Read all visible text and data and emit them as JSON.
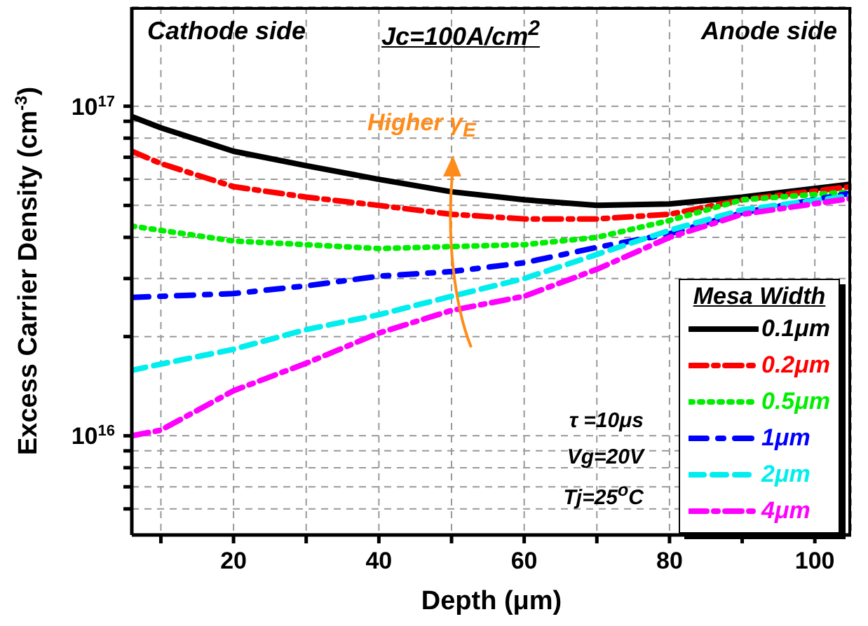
{
  "chart_data": {
    "type": "line",
    "xlabel": "Depth (μm)",
    "ylabel": "Excess Carrier Density (cm$^{-3}$)",
    "legend_title": "Mesa Width",
    "legend": "bottom right",
    "grid": true,
    "log": "y",
    "marker": "none",
    "annotations": [
      "Cathode side",
      "Jc=100A/cm$^{2}$",
      "Anode side",
      "Higher γ$_{E}$",
      "τ =10μs",
      "Vg=20V",
      "Tj=25$^{o}$C"
    ],
    "x": [
      6,
      10,
      20,
      30,
      40,
      50,
      60,
      70,
      80,
      90,
      105
    ],
    "xlim": [
      6,
      105
    ],
    "xticks": [
      {
        "value": 10,
        "label": null
      },
      20,
      {
        "value": 30,
        "label": null
      },
      40,
      {
        "value": 50,
        "label": null
      },
      60,
      {
        "value": 70,
        "label": null
      },
      80,
      {
        "value": 90,
        "label": null
      },
      100
    ],
    "ylim": [
      5000000000000000.0,
      2e+17
    ],
    "yticks": [
      {
        "value": 6000000000000000.0,
        "label": null
      },
      {
        "value": 7000000000000000.0,
        "label": null
      },
      {
        "value": 8000000000000000.0,
        "label": null
      },
      {
        "value": 9000000000000000.0,
        "label": null
      },
      {
        "value": 1e+16,
        "label": "10$^{16}$"
      },
      {
        "value": 2e+16,
        "label": null
      },
      {
        "value": 3e+16,
        "label": null
      },
      {
        "value": 4e+16,
        "label": null
      },
      {
        "value": 5e+16,
        "label": null
      },
      {
        "value": 6e+16,
        "label": null
      },
      {
        "value": 7e+16,
        "label": null
      },
      {
        "value": 8e+16,
        "label": null
      },
      {
        "value": 9e+16,
        "label": null
      },
      {
        "value": 1e+17,
        "label": "10$^{17}$"
      }
    ],
    "series": [
      {
        "name": "0.1μm",
        "color": "#000000",
        "line_style": "solid",
        "values": [
          9.3e+16,
          8.6e+16,
          7.3e+16,
          6.6e+16,
          6e+16,
          5.5e+16,
          5.2e+16,
          5e+16,
          5.05e+16,
          5.3e+16,
          5.8e+16
        ]
      },
      {
        "name": "0.2μm",
        "color": "#ff0000",
        "line_style": "dashed",
        "values": [
          7.3e+16,
          6.7e+16,
          5.7e+16,
          5.3e+16,
          5e+16,
          4.7e+16,
          4.55e+16,
          4.55e+16,
          4.7e+16,
          5.2e+16,
          5.7e+16
        ]
      },
      {
        "name": "0.5μm",
        "color": "#00ee00",
        "line_style": "dotted",
        "values": [
          4.33e+16,
          4.2e+16,
          3.9e+16,
          3.8e+16,
          3.7e+16,
          3.75e+16,
          3.8e+16,
          4e+16,
          4.5e+16,
          5.2e+16,
          5.5e+16
        ]
      },
      {
        "name": "1μm",
        "color": "#0000ff",
        "line_style": "dashed",
        "values": [
          2.63e+16,
          2.65e+16,
          2.7e+16,
          2.85e+16,
          3.05e+16,
          3.15e+16,
          3.35e+16,
          3.73e+16,
          4.1e+16,
          4.75e+16,
          5.45e+16
        ]
      },
      {
        "name": "2μm",
        "color": "#00eeee",
        "line_style": "dashed",
        "values": [
          1.58e+16,
          1.65e+16,
          1.83e+16,
          2.1e+16,
          2.33e+16,
          2.65e+16,
          3e+16,
          3.55e+16,
          4.2e+16,
          4.85e+16,
          5.35e+16
        ]
      },
      {
        "name": "4μm",
        "color": "#ff00ff",
        "line_style": "dashed",
        "values": [
          1e+16,
          1.04e+16,
          1.37e+16,
          1.66e+16,
          2.05e+16,
          2.4e+16,
          2.65e+16,
          3.2e+16,
          4e+16,
          4.7e+16,
          5.25e+16
        ]
      }
    ]
  }
}
